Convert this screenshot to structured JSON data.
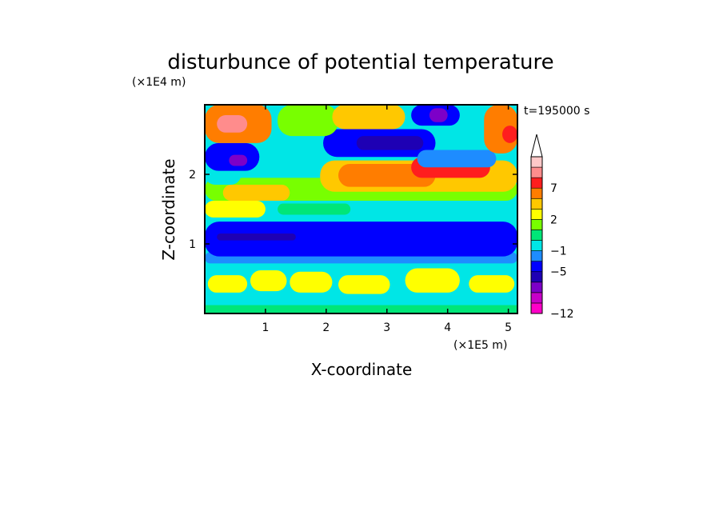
{
  "chart_data": {
    "type": "heatmap",
    "title": "disturbunce of potential temperature",
    "xlabel": "X-coordinate",
    "ylabel": "Z-coordinate",
    "x_unit": "(×1E5 m)",
    "y_unit": "(×1E4 m)",
    "time_label": "t=195000 s",
    "xlim": [
      0,
      5.15
    ],
    "ylim": [
      0,
      3.0
    ],
    "x_ticks": [
      1,
      2,
      3,
      4,
      5
    ],
    "y_ticks": [
      1,
      2
    ],
    "x_tick_labels": [
      "1",
      "2",
      "3",
      "4",
      "5"
    ],
    "y_tick_labels": [
      "1",
      "2"
    ],
    "colorbar": {
      "extend": "max",
      "levels": [
        -12,
        -11,
        -9,
        -7,
        -5,
        -3,
        -1,
        0,
        1,
        2,
        3,
        5,
        7,
        9,
        11
      ],
      "labeled_levels": [
        "-12",
        "-5",
        "-1",
        "2",
        "7"
      ],
      "colors": [
        "#ff00c8",
        "#c800c8",
        "#7d00c8",
        "#1e00b4",
        "#0000ff",
        "#1e8cff",
        "#00e6e6",
        "#00e678",
        "#78ff00",
        "#ffff00",
        "#ffc800",
        "#ff7d00",
        "#ff1e1e",
        "#ff8c8c",
        "#ffc8c8"
      ],
      "extend_color": "#ffffff"
    },
    "regions": [
      {
        "x": [
          0,
          5.15
        ],
        "z": [
          0,
          3.0
        ],
        "value": -0.5
      },
      {
        "x": [
          0,
          5.15
        ],
        "z": [
          0,
          0.12
        ],
        "value": 0.5
      },
      {
        "x": [
          0.05,
          0.7
        ],
        "z": [
          0.3,
          0.55
        ],
        "value": 2.5
      },
      {
        "x": [
          0.75,
          1.35
        ],
        "z": [
          0.32,
          0.62
        ],
        "value": 2.5
      },
      {
        "x": [
          1.4,
          2.1
        ],
        "z": [
          0.3,
          0.6
        ],
        "value": 2.5
      },
      {
        "x": [
          2.2,
          3.05
        ],
        "z": [
          0.28,
          0.55
        ],
        "value": 2.5
      },
      {
        "x": [
          3.3,
          4.2
        ],
        "z": [
          0.3,
          0.65
        ],
        "value": 2.5
      },
      {
        "x": [
          4.35,
          5.1
        ],
        "z": [
          0.3,
          0.55
        ],
        "value": 2.5
      },
      {
        "x": [
          0,
          5.15
        ],
        "z": [
          0.72,
          0.88
        ],
        "value": -2
      },
      {
        "x": [
          0,
          5.15
        ],
        "z": [
          0.82,
          1.32
        ],
        "value": -4
      },
      {
        "x": [
          0.2,
          1.5
        ],
        "z": [
          1.05,
          1.15
        ],
        "value": -6
      },
      {
        "x": [
          0,
          1.0
        ],
        "z": [
          1.38,
          1.62
        ],
        "value": 2.5
      },
      {
        "x": [
          1.2,
          2.4
        ],
        "z": [
          1.42,
          1.58
        ],
        "value": 0.5
      },
      {
        "x": [
          0,
          5.15
        ],
        "z": [
          1.62,
          1.95
        ],
        "value": 1.5
      },
      {
        "x": [
          0.3,
          1.4
        ],
        "z": [
          1.62,
          1.85
        ],
        "value": 4
      },
      {
        "x": [
          1.9,
          5.15
        ],
        "z": [
          1.75,
          2.2
        ],
        "value": 4
      },
      {
        "x": [
          2.2,
          3.8
        ],
        "z": [
          1.82,
          2.15
        ],
        "value": 6
      },
      {
        "x": [
          3.4,
          4.7
        ],
        "z": [
          1.95,
          2.25
        ],
        "value": 8
      },
      {
        "x": [
          0,
          0.6
        ],
        "z": [
          1.85,
          2.15
        ],
        "value": -0.5
      },
      {
        "x": [
          0,
          0.9
        ],
        "z": [
          2.05,
          2.45
        ],
        "value": -4
      },
      {
        "x": [
          0.4,
          0.7
        ],
        "z": [
          2.12,
          2.28
        ],
        "value": -9
      },
      {
        "x": [
          0.9,
          1.6
        ],
        "z": [
          2.1,
          2.35
        ],
        "value": -0.5
      },
      {
        "x": [
          1.95,
          3.8
        ],
        "z": [
          2.25,
          2.65
        ],
        "value": -4
      },
      {
        "x": [
          2.5,
          3.6
        ],
        "z": [
          2.35,
          2.55
        ],
        "value": -6
      },
      {
        "x": [
          3.5,
          4.8
        ],
        "z": [
          2.1,
          2.35
        ],
        "value": -2
      },
      {
        "x": [
          0,
          1.1
        ],
        "z": [
          2.45,
          3.0
        ],
        "value": 6
      },
      {
        "x": [
          0.2,
          0.7
        ],
        "z": [
          2.6,
          2.85
        ],
        "value": 9
      },
      {
        "x": [
          1.2,
          2.2
        ],
        "z": [
          2.55,
          3.0
        ],
        "value": 1.5
      },
      {
        "x": [
          2.1,
          3.3
        ],
        "z": [
          2.65,
          3.0
        ],
        "value": 4
      },
      {
        "x": [
          3.4,
          4.2
        ],
        "z": [
          2.7,
          3.0
        ],
        "value": -4
      },
      {
        "x": [
          3.7,
          4.0
        ],
        "z": [
          2.75,
          2.95
        ],
        "value": -9
      },
      {
        "x": [
          4.6,
          5.15
        ],
        "z": [
          2.3,
          3.0
        ],
        "value": 6
      },
      {
        "x": [
          4.9,
          5.15
        ],
        "z": [
          2.45,
          2.7
        ],
        "value": 8
      }
    ]
  }
}
